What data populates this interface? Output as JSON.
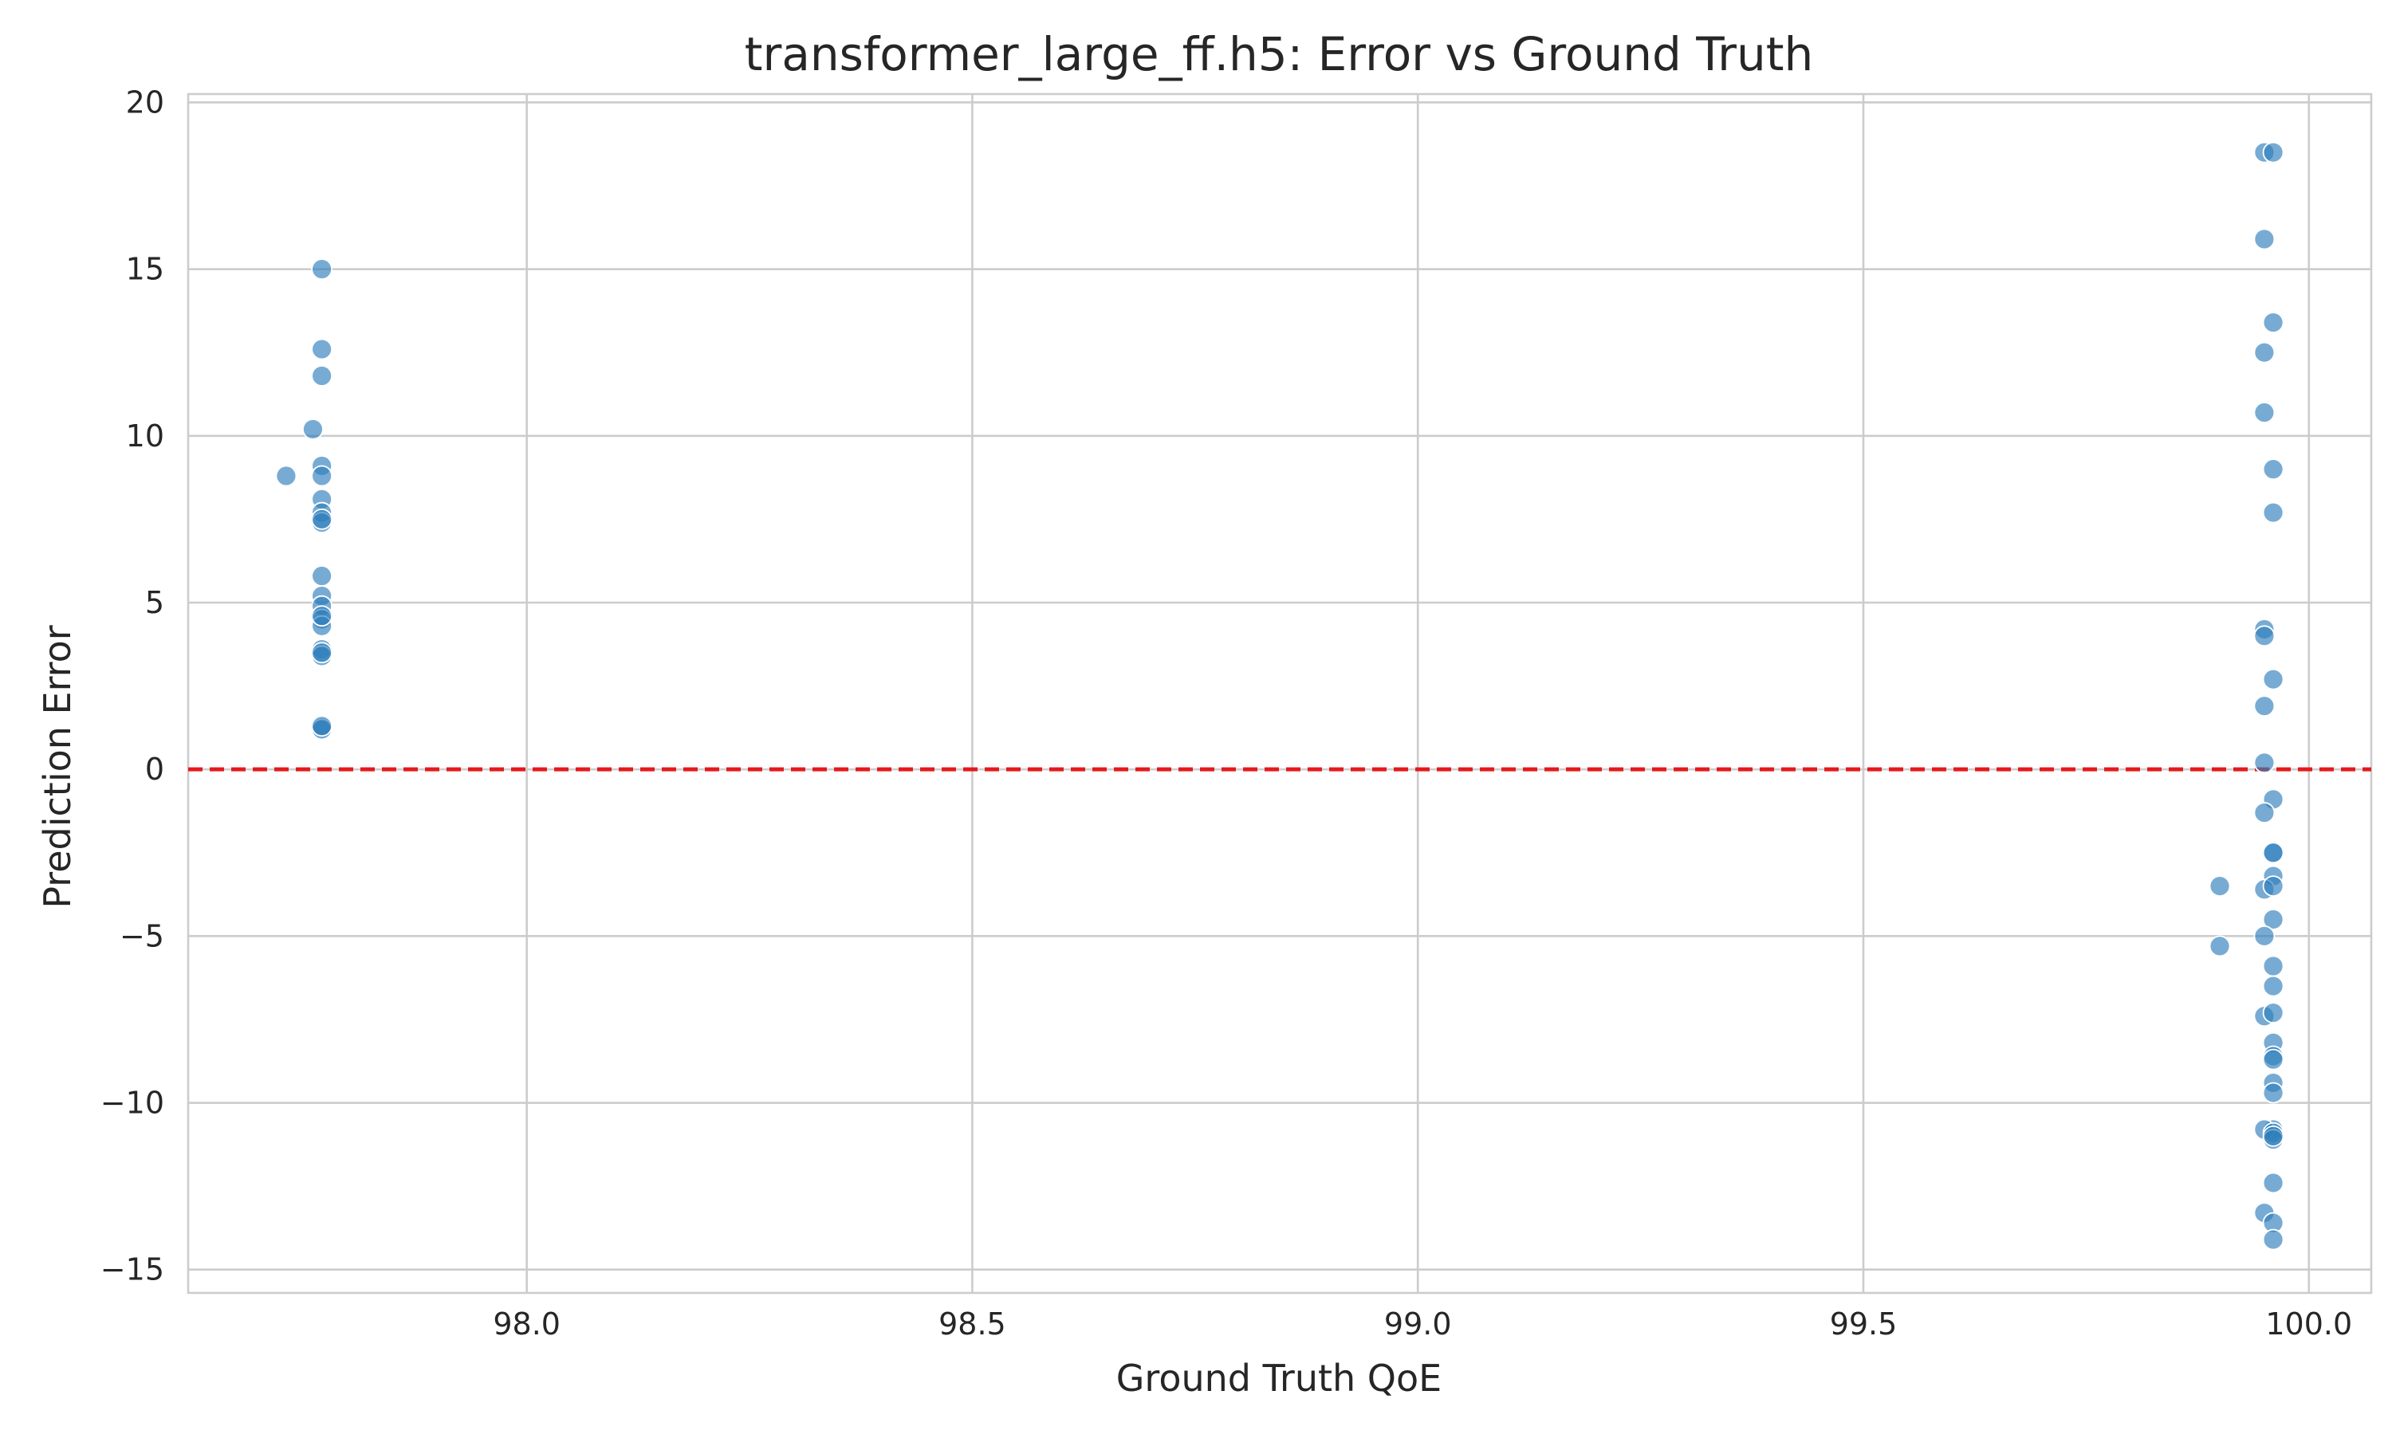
{
  "chart_data": {
    "type": "scatter",
    "title": "transformer_large_ff.h5: Error vs Ground Truth",
    "xlabel": "Ground Truth QoE",
    "ylabel": "Prediction Error",
    "xlim": [
      97.62,
      100.07
    ],
    "ylim": [
      -15.7,
      20.25
    ],
    "x_ticks": [
      98.0,
      98.5,
      99.0,
      99.5,
      100.0
    ],
    "x_tick_labels": [
      "98.0",
      "98.5",
      "99.0",
      "99.5",
      "100.0"
    ],
    "y_ticks": [
      20,
      15,
      10,
      5,
      0,
      -5,
      -10,
      -15
    ],
    "y_tick_labels": [
      "20",
      "15",
      "10",
      "5",
      "0",
      "−5",
      "−10",
      "−15"
    ],
    "grid": true,
    "reference_line": {
      "y": 0,
      "style": "dashed",
      "color": "#e41a1c"
    },
    "point_color": "#2e7ebc",
    "series": [
      {
        "x": [
          97.77,
          97.77,
          97.77,
          97.76,
          97.73,
          97.77,
          97.77,
          97.77,
          97.77,
          97.77,
          97.77,
          97.77,
          97.77,
          97.77,
          97.77,
          97.77,
          97.77,
          97.77,
          97.77,
          97.77,
          97.77,
          97.77,
          97.77,
          99.95,
          99.96,
          99.95,
          99.96,
          99.95,
          99.95,
          99.96,
          99.96,
          99.95,
          99.95,
          99.96,
          99.95,
          99.95,
          99.96,
          99.95,
          99.96,
          99.96,
          99.96,
          99.9,
          99.95,
          99.96,
          99.96,
          99.95,
          99.9,
          99.96,
          99.96,
          99.95,
          99.96,
          99.96,
          99.96,
          99.96,
          99.96,
          99.96,
          99.96,
          99.95,
          99.96,
          99.96,
          99.96,
          99.96,
          99.95,
          99.96,
          99.96
        ],
        "y": [
          15.0,
          12.6,
          11.8,
          10.2,
          8.8,
          9.1,
          8.8,
          8.1,
          7.7,
          7.4,
          7.5,
          5.8,
          5.2,
          4.9,
          4.5,
          4.3,
          4.6,
          3.6,
          3.4,
          3.5,
          1.25,
          1.2,
          1.3,
          18.5,
          18.5,
          15.9,
          13.4,
          12.5,
          10.7,
          9.0,
          7.7,
          4.2,
          4.0,
          2.7,
          1.9,
          0.2,
          -0.9,
          -1.3,
          -2.5,
          -2.5,
          -3.2,
          -3.5,
          -3.6,
          -3.5,
          -4.5,
          -5.0,
          -5.3,
          -5.9,
          -6.5,
          -7.4,
          -7.3,
          -8.2,
          -8.6,
          -8.7,
          -9.4,
          -9.7,
          -10.8,
          -10.8,
          -10.9,
          -11.1,
          -11.0,
          -12.4,
          -13.3,
          -13.6,
          -14.1
        ]
      }
    ]
  }
}
